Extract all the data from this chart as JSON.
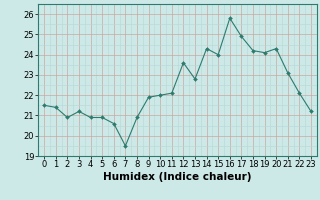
{
  "x": [
    0,
    1,
    2,
    3,
    4,
    5,
    6,
    7,
    8,
    9,
    10,
    11,
    12,
    13,
    14,
    15,
    16,
    17,
    18,
    19,
    20,
    21,
    22,
    23
  ],
  "y": [
    21.5,
    21.4,
    20.9,
    21.2,
    20.9,
    20.9,
    20.6,
    19.5,
    20.9,
    21.9,
    22.0,
    22.1,
    23.6,
    22.8,
    24.3,
    24.0,
    25.8,
    24.9,
    24.2,
    24.1,
    24.3,
    23.1,
    22.1,
    21.2
  ],
  "line_color": "#2d7b6f",
  "marker": "D",
  "marker_size": 2.0,
  "bg_color": "#cce9e7",
  "grid_color_minor": "#b8dcd9",
  "grid_color_major": "#c0c0b0",
  "xlabel": "Humidex (Indice chaleur)",
  "xlim": [
    -0.5,
    23.5
  ],
  "ylim": [
    19,
    26.5
  ],
  "yticks": [
    19,
    20,
    21,
    22,
    23,
    24,
    25,
    26
  ],
  "xticks": [
    0,
    1,
    2,
    3,
    4,
    5,
    6,
    7,
    8,
    9,
    10,
    11,
    12,
    13,
    14,
    15,
    16,
    17,
    18,
    19,
    20,
    21,
    22,
    23
  ],
  "xtick_labels": [
    "0",
    "1",
    "2",
    "3",
    "4",
    "5",
    "6",
    "7",
    "8",
    "9",
    "10",
    "11",
    "12",
    "13",
    "14",
    "15",
    "16",
    "17",
    "18",
    "19",
    "20",
    "21",
    "22",
    "23"
  ],
  "font_size_axis": 6,
  "font_size_label": 7.5
}
